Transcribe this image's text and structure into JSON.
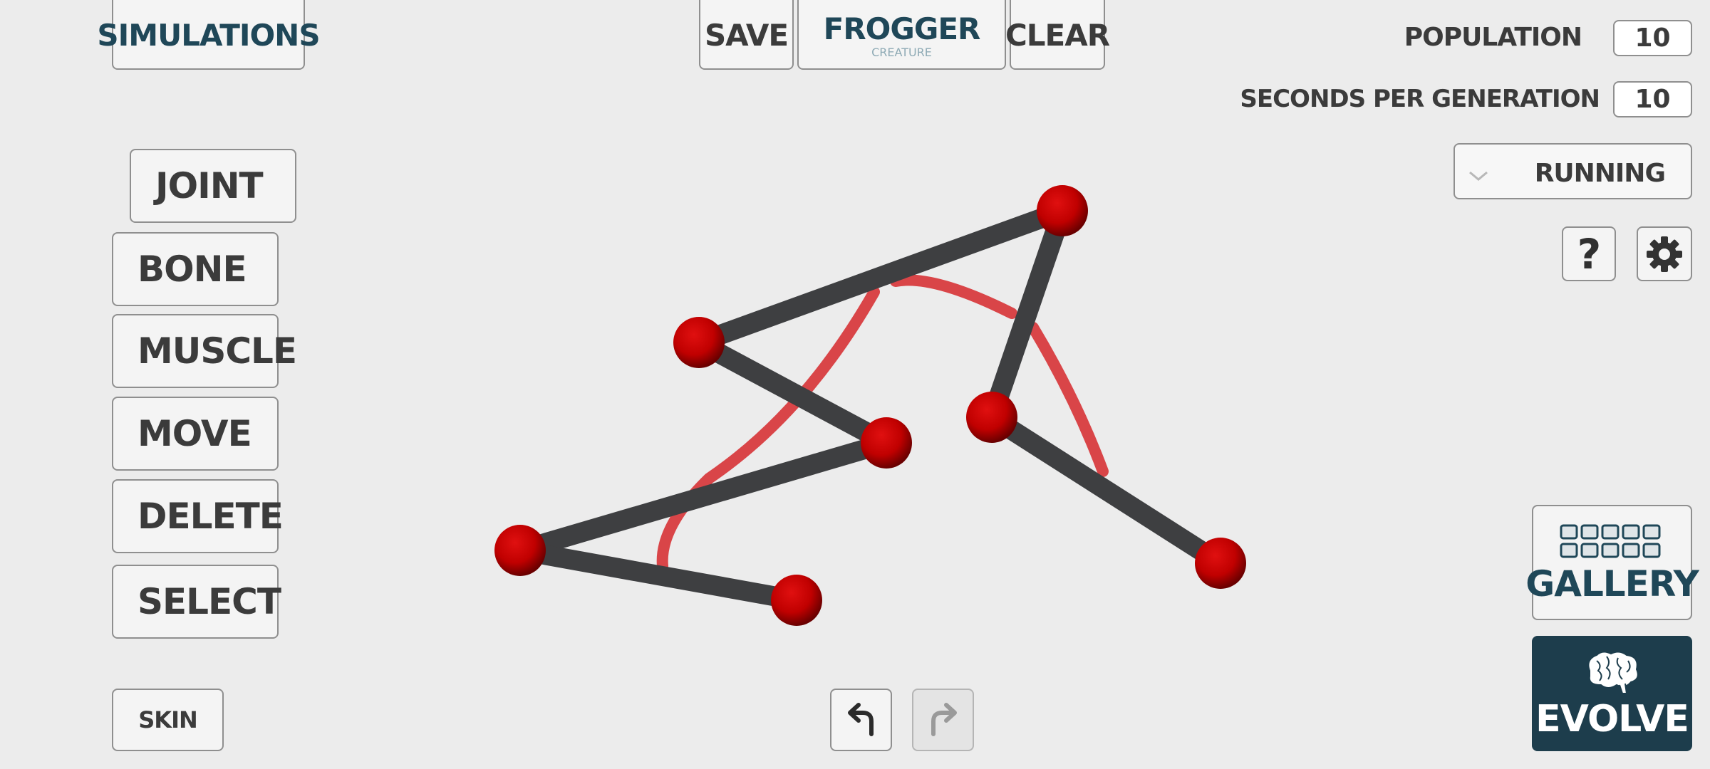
{
  "top_bar": {
    "simulations_label": "SIMULATIONS",
    "save_label": "SAVE",
    "creature_name": "FROGGER",
    "creature_subtitle": "CREATURE",
    "clear_label": "CLEAR"
  },
  "settings": {
    "population_label": "POPULATION",
    "population_value": "10",
    "seconds_label": "SECONDS PER GENERATION",
    "seconds_value": "10",
    "status_value": "RUNNING"
  },
  "tools": {
    "joint": "JOINT",
    "bone": "BONE",
    "muscle": "MUSCLE",
    "move": "MOVE",
    "delete": "DELETE",
    "select": "SELECT",
    "skin": "SKIN"
  },
  "actions": {
    "help_symbol": "?",
    "gallery_label": "GALLERY",
    "evolve_label": "EVOLVE"
  },
  "icons": {
    "undo": "undo-icon",
    "redo": "redo-icon",
    "settings": "gear-icon",
    "gallery": "grid-icon",
    "evolve": "brain-icon",
    "dropdown": "chevron-down-icon"
  },
  "colors": {
    "background": "#ececec",
    "joint": "#cc0000",
    "bone": "#3e3f41",
    "muscle": "#d94548",
    "evolve_bg": "#1d3d4c",
    "teal_text": "#1f4758"
  }
}
